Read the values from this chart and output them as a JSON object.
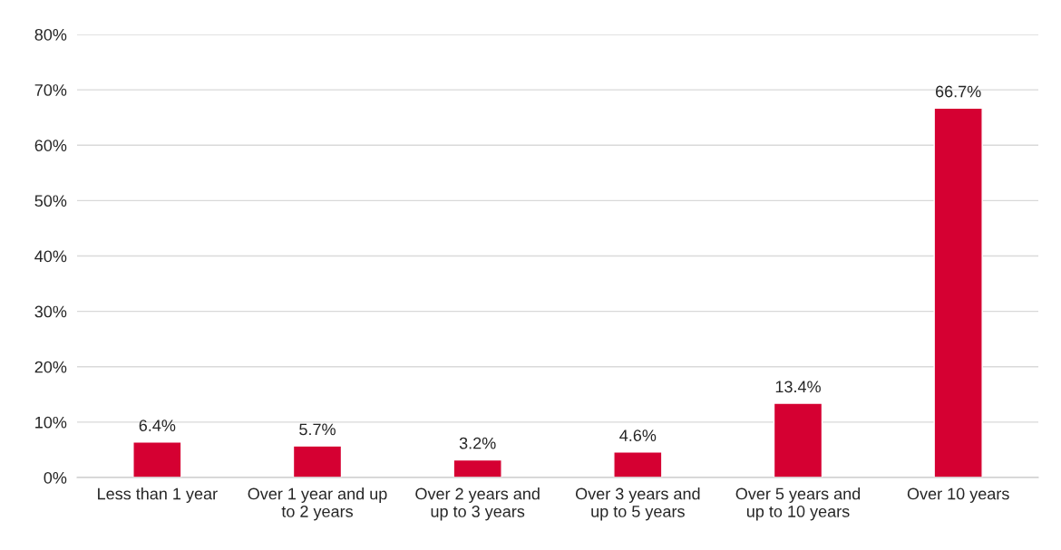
{
  "chart_data": {
    "type": "bar",
    "categories": [
      "Less than 1 year",
      "Over 1 year and up\nto 2 years",
      "Over 2 years and\nup to 3 years",
      "Over 3 years and\nup to 5 years",
      "Over 5 years and\nup to 10 years",
      "Over 10 years"
    ],
    "values": [
      6.4,
      5.7,
      3.2,
      4.6,
      13.4,
      66.7
    ],
    "value_labels": [
      "6.4%",
      "5.7%",
      "3.2%",
      "4.6%",
      "13.4%",
      "66.7%"
    ],
    "color": "#d50032",
    "ylim": [
      0,
      80
    ],
    "yticks": [
      {
        "value": 0,
        "label": "0%"
      },
      {
        "value": 10,
        "label": "10%"
      },
      {
        "value": 20,
        "label": "20%"
      },
      {
        "value": 30,
        "label": "30%"
      },
      {
        "value": 40,
        "label": "40%"
      },
      {
        "value": 50,
        "label": "50%"
      },
      {
        "value": 60,
        "label": "60%"
      },
      {
        "value": 70,
        "label": "70%"
      },
      {
        "value": 80,
        "label": "80%"
      }
    ],
    "grid": "y"
  }
}
